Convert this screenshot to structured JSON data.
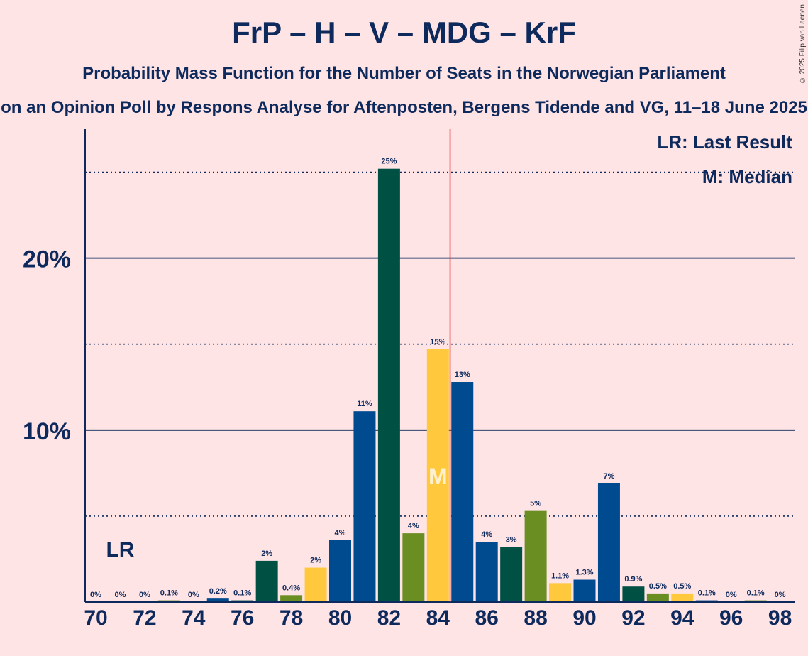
{
  "title": "FrP – H – V – MDG – KrF",
  "subtitle": "Probability Mass Function for the Number of Seats in the Norwegian Parliament",
  "subtitle2": "on an Opinion Poll by Respons Analyse for Aftenposten, Bergens Tidende and VG, 11–18 June 2025",
  "copyright": "© 2025 Filip van Laenen",
  "legend": {
    "last_result": "LR: Last Result",
    "median": "M: Median"
  },
  "markers": {
    "last_result_label": "LR",
    "median_label": "M"
  },
  "colors": {
    "background": "#FFE4E6",
    "text": "#0E2A5C",
    "majority_line": "#E53935",
    "series": [
      "#004B8F",
      "#005143",
      "#6B8E23",
      "#FFC83D",
      "#004B8F"
    ]
  },
  "chart_data": {
    "type": "bar",
    "x": [
      70,
      71,
      72,
      73,
      74,
      75,
      76,
      77,
      78,
      79,
      80,
      81,
      82,
      83,
      84,
      85,
      86,
      87,
      88,
      89,
      90,
      91,
      92,
      93,
      94,
      95,
      96,
      97,
      98
    ],
    "values": [
      0,
      0,
      0,
      0.1,
      0,
      0.2,
      0.1,
      2.4,
      0.4,
      2.0,
      3.6,
      11.1,
      25.2,
      4.0,
      14.7,
      12.8,
      3.5,
      3.2,
      5.3,
      1.1,
      1.3,
      6.9,
      0.9,
      0.5,
      0.5,
      0.1,
      0,
      0.1,
      0
    ],
    "data_labels": [
      "0%",
      "0%",
      "0%",
      "0.1%",
      "0%",
      "0.2%",
      "0.1%",
      "2%",
      "0.4%",
      "2%",
      "4%",
      "11%",
      "25%",
      "4%",
      "15%",
      "13%",
      "4%",
      "3%",
      "5%",
      "1.1%",
      "1.3%",
      "7%",
      "0.9%",
      "0.5%",
      "0.5%",
      "0.1%",
      "0%",
      "0.1%",
      "0%"
    ],
    "color_index": [
      4,
      0,
      1,
      2,
      3,
      0,
      1,
      1,
      2,
      3,
      4,
      0,
      1,
      2,
      3,
      0,
      0,
      1,
      2,
      3,
      4,
      0,
      1,
      2,
      3,
      0,
      1,
      2,
      3
    ],
    "x_tick_labels": [
      "70",
      "72",
      "74",
      "76",
      "78",
      "80",
      "82",
      "84",
      "86",
      "88",
      "90",
      "92",
      "94",
      "96",
      "98"
    ],
    "y_tick_labels": [
      "10%",
      "20%"
    ],
    "y_major_ticks": [
      10,
      20
    ],
    "y_minor_ticks": [
      5,
      15,
      25
    ],
    "ylim": [
      0,
      27.5
    ],
    "last_result": 71,
    "median": 84,
    "majority_threshold": 84.5,
    "legend_position": "top-right"
  }
}
